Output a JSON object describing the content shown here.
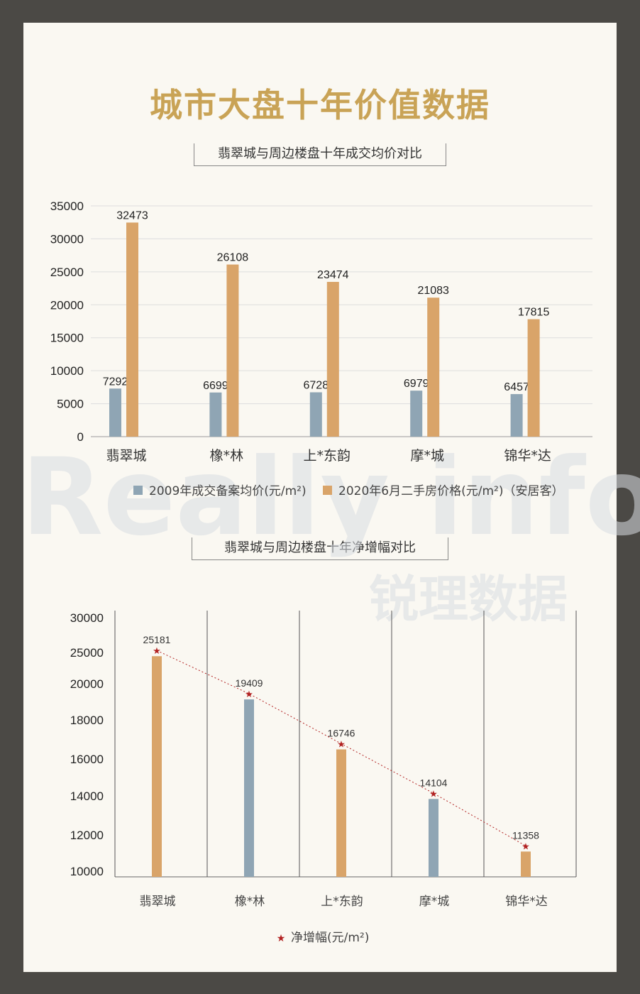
{
  "page": {
    "title": "城市大盘十年价值数据",
    "subtitle_top": "翡翠城与周边楼盘十年成交均价对比",
    "subtitle_bottom": "翡翠城与周边楼盘十年净增幅对比",
    "watermark": "Really info",
    "watermark_cn": "锐理数据",
    "colors": {
      "blue": "#8fa5b4",
      "orange": "#d9a469",
      "star": "#b22222",
      "title": "#c9a356"
    }
  },
  "chart_data": [
    {
      "type": "bar",
      "categories": [
        "翡翠城",
        "橡*林",
        "上*东韵",
        "摩*城",
        "锦华*达"
      ],
      "series": [
        {
          "name": "2009年成交备案均价(元/m²)",
          "values": [
            7292,
            6699,
            6728,
            6979,
            6457
          ],
          "color": "#8fa5b4"
        },
        {
          "name": "2020年6月二手房价格(元/m²)（安居客）",
          "values": [
            32473,
            26108,
            23474,
            21083,
            17815
          ],
          "color": "#d9a469"
        }
      ],
      "yticks": [
        0,
        5000,
        10000,
        15000,
        20000,
        25000,
        30000,
        35000
      ],
      "ylim": [
        0,
        35000
      ],
      "grid": true,
      "legend": "bottom"
    },
    {
      "type": "bar",
      "categories": [
        "翡翠城",
        "橡*林",
        "上*东韵",
        "摩*城",
        "锦华*达"
      ],
      "series": [
        {
          "name": "净增幅(元/m²)",
          "values": [
            25181,
            19409,
            16746,
            14104,
            11358
          ],
          "bar_colors": [
            "#d9a469",
            "#8fa5b4",
            "#d9a469",
            "#8fa5b4",
            "#d9a469"
          ]
        }
      ],
      "yticks": [
        10000,
        12000,
        14000,
        16000,
        18000,
        20000,
        25000,
        30000
      ],
      "ylim": [
        10000,
        30000
      ],
      "line_overlay": true,
      "grid": false,
      "legend": "bottom"
    }
  ]
}
